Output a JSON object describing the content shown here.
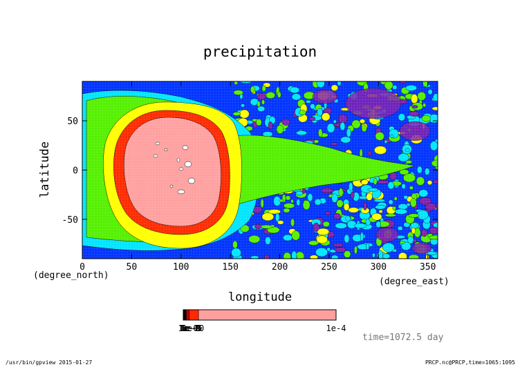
{
  "chart_data": {
    "type": "heatmap",
    "title": "precipitation",
    "xlabel": "longitude",
    "xunit": "(degree_east)",
    "ylabel": "latitude",
    "yunit": "(degree_north)",
    "xlim": [
      0,
      360
    ],
    "ylim": [
      -90,
      90
    ],
    "xticks": [
      0,
      50,
      100,
      150,
      200,
      250,
      300,
      350
    ],
    "yticks": [
      -50,
      0,
      50
    ],
    "colorbar": {
      "min_label": "1e-5",
      "max_label": "1e-4",
      "overlapping_labels": [
        "1e-6",
        "1e-7",
        "1e-8",
        "1e-9",
        "1e-10"
      ],
      "levels": [
        {
          "color": "#000000",
          "weight": 2
        },
        {
          "color": "#c00000",
          "weight": 2
        },
        {
          "color": "#ff2a00",
          "weight": 6
        },
        {
          "color": "#ffa0a0",
          "weight": 90
        }
      ]
    },
    "contour_fills": {
      "pink": "#ffa0a0",
      "red": "#ff2a00",
      "yellow": "#ffff00",
      "green": "#55f000",
      "cyan": "#00e5ff",
      "blue": "#0033ff",
      "purple": "#8020b0"
    },
    "time_label": "time=1072.5 day"
  },
  "footer": {
    "left": "/usr/bin/gpview  2015-01-27",
    "right": "PRCP.nc@PRCP,time=1065:1095"
  }
}
